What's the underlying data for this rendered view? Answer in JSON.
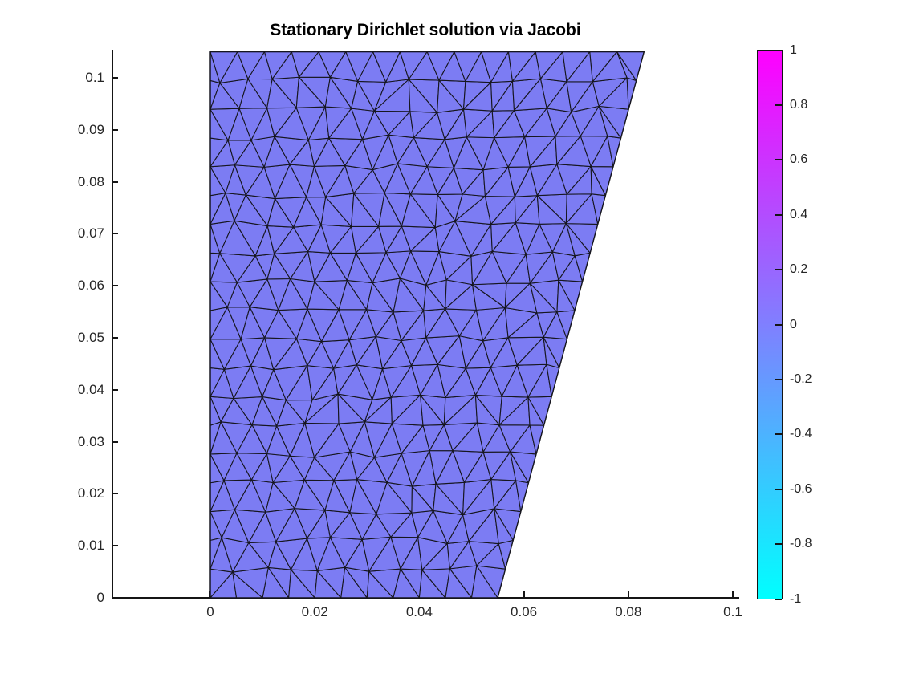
{
  "figure": {
    "title": "Stationary Dirichlet solution via Jacobi"
  },
  "colors": {
    "background": "#FFFFFF",
    "axis": "#151515",
    "tick_label": "#262626",
    "title": "#000000"
  },
  "chart_data": {
    "type": "mesh",
    "title": "Stationary Dirichlet solution via Jacobi",
    "xlabel": "",
    "ylabel": "",
    "xlim": [
      -0.0187,
      0.1011
    ],
    "ylim": [
      0,
      0.1054
    ],
    "grid": false,
    "x_ticks": {
      "values": [
        0,
        0.02,
        0.04,
        0.06,
        0.08,
        0.1
      ],
      "labels": [
        "0",
        "0.02",
        "0.04",
        "0.06",
        "0.08",
        "0.1"
      ]
    },
    "y_ticks": {
      "values": [
        0,
        0.01,
        0.02,
        0.03,
        0.04,
        0.05,
        0.06,
        0.07,
        0.08,
        0.09,
        0.1
      ],
      "labels": [
        "0",
        "0.01",
        "0.02",
        "0.03",
        "0.04",
        "0.05",
        "0.06",
        "0.07",
        "0.08",
        "0.09",
        "0.1"
      ]
    },
    "domain_polygon_xy": [
      [
        0,
        0
      ],
      [
        0.055,
        0
      ],
      [
        0.083,
        0.105
      ],
      [
        0,
        0.105
      ]
    ],
    "solution": {
      "description": "uniform nodal solution rendered as a flat face color over the triangulated domain",
      "value": 0
    },
    "mesh": {
      "element_size": 0.0052,
      "point_rows": 20,
      "face_color": "#7C7CF3",
      "edge_color": "#16161F",
      "seed": 7
    },
    "colorbar": {
      "colormap": "cool",
      "min": -1,
      "max": 1,
      "tick_values": [
        1,
        0.8,
        0.6,
        0.4,
        0.2,
        0,
        -0.2,
        -0.4,
        -0.6,
        -0.8,
        -1
      ],
      "tick_labels": [
        "1",
        "0.8",
        "0.6",
        "0.4",
        "0.2",
        "0",
        "-0.2",
        "-0.4",
        "-0.6",
        "-0.8",
        "-1"
      ],
      "top_color": "#FF00FF",
      "bottom_color": "#00FFFF"
    }
  }
}
